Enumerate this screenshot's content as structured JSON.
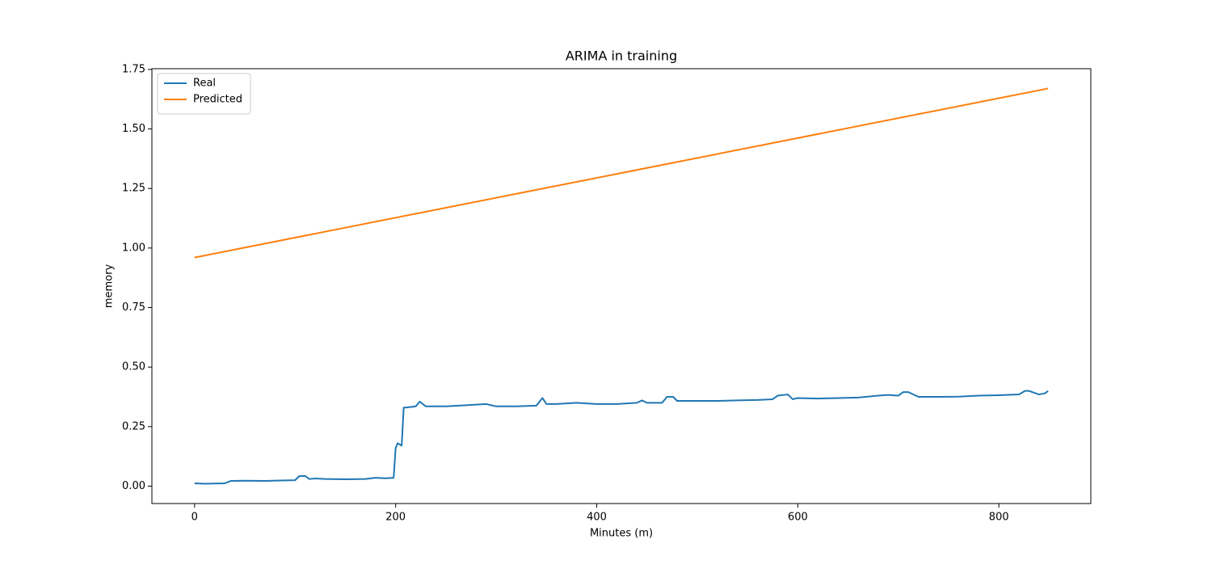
{
  "chart_data": {
    "type": "line",
    "title": "ARIMA in training",
    "x_label": "Minutes (m)",
    "y_label": "memory",
    "xlim": [
      -42.45,
      891.45
    ],
    "ylim": [
      -0.073,
      1.753
    ],
    "xticks": [
      0,
      200,
      400,
      600,
      800
    ],
    "yticks": [
      {
        "value": 0,
        "label": "0.00"
      },
      {
        "value": 0.25,
        "label": "0.25"
      },
      {
        "value": 0.5,
        "label": "0.50"
      },
      {
        "value": 0.75,
        "label": "0.75"
      },
      {
        "value": 1,
        "label": "1.00"
      },
      {
        "value": 1.25,
        "label": "1.25"
      },
      {
        "value": 1.5,
        "label": "1.50"
      },
      {
        "value": 1.75,
        "label": "1.75"
      }
    ],
    "grid": false,
    "legend": "upper-left",
    "series": [
      {
        "name": "Real",
        "color": "#1f77b4",
        "x": [
          0,
          10,
          20,
          30,
          36,
          50,
          70,
          90,
          100,
          104,
          110,
          114,
          120,
          130,
          150,
          170,
          180,
          190,
          198,
          200,
          202,
          206,
          208,
          210,
          220,
          224,
          230,
          250,
          270,
          290,
          300,
          320,
          340,
          346,
          350,
          360,
          380,
          400,
          420,
          440,
          445,
          450,
          465,
          470,
          476,
          480,
          500,
          520,
          540,
          560,
          575,
          580,
          590,
          595,
          600,
          620,
          640,
          660,
          680,
          690,
          700,
          705,
          710,
          720,
          740,
          760,
          780,
          800,
          820,
          826,
          830,
          840,
          846,
          849
        ],
        "values": [
          0.012,
          0.01,
          0.011,
          0.012,
          0.022,
          0.023,
          0.022,
          0.024,
          0.025,
          0.042,
          0.043,
          0.03,
          0.032,
          0.03,
          0.029,
          0.03,
          0.035,
          0.033,
          0.035,
          0.16,
          0.18,
          0.17,
          0.33,
          0.33,
          0.335,
          0.355,
          0.335,
          0.335,
          0.34,
          0.345,
          0.335,
          0.335,
          0.338,
          0.37,
          0.345,
          0.345,
          0.35,
          0.345,
          0.345,
          0.35,
          0.36,
          0.35,
          0.35,
          0.375,
          0.375,
          0.358,
          0.358,
          0.358,
          0.36,
          0.362,
          0.365,
          0.38,
          0.385,
          0.365,
          0.37,
          0.368,
          0.37,
          0.372,
          0.38,
          0.383,
          0.38,
          0.395,
          0.395,
          0.375,
          0.375,
          0.376,
          0.38,
          0.382,
          0.385,
          0.4,
          0.4,
          0.385,
          0.39,
          0.4
        ]
      },
      {
        "name": "Predicted",
        "color": "#ff7f0e",
        "x": [
          0,
          849
        ],
        "values": [
          0.96,
          1.67
        ]
      }
    ]
  }
}
